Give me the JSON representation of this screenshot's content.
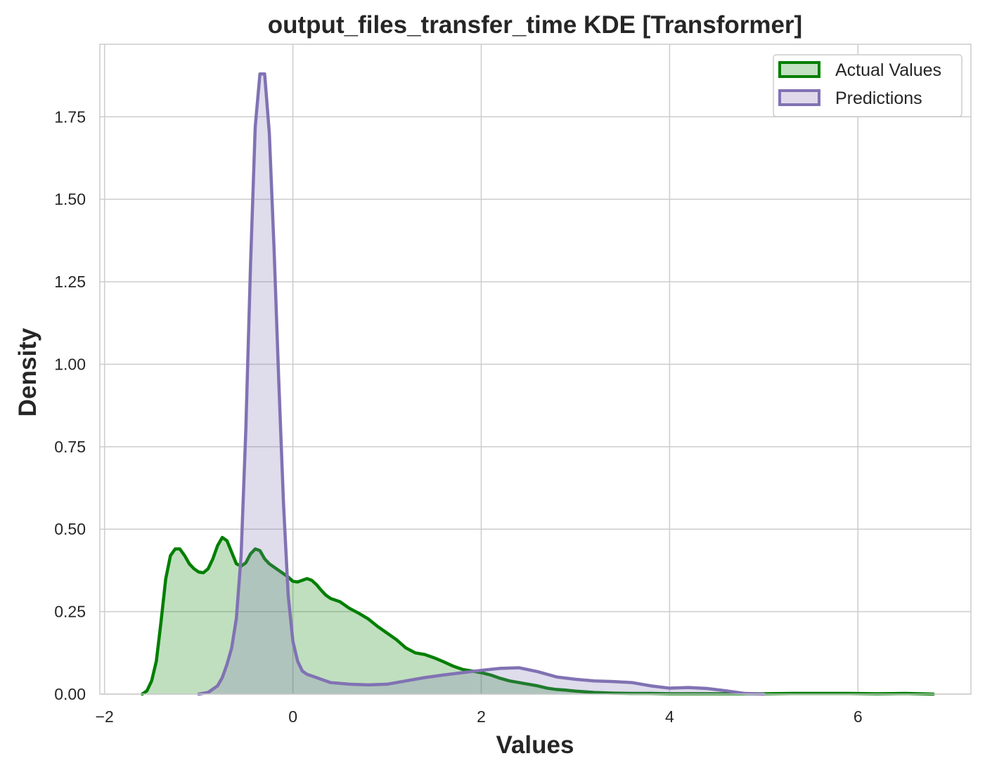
{
  "chart_data": {
    "type": "area",
    "title": "output_files_transfer_time KDE [Transformer]",
    "xlabel": "Values",
    "ylabel": "Density",
    "xlim": [
      -2.05,
      7.2
    ],
    "ylim": [
      0,
      1.97
    ],
    "x_ticks": [
      -2,
      0,
      2,
      4,
      6
    ],
    "x_tick_labels": [
      "−2",
      "0",
      "2",
      "4",
      "6"
    ],
    "y_ticks": [
      0,
      0.25,
      0.5,
      0.75,
      1.0,
      1.25,
      1.5,
      1.75
    ],
    "y_tick_labels": [
      "0.00",
      "0.25",
      "0.50",
      "0.75",
      "1.00",
      "1.25",
      "1.50",
      "1.75"
    ],
    "grid": true,
    "legend_position": "top-right",
    "series": [
      {
        "name": "Actual Values",
        "line_color": "#007f00",
        "fill_color": "#c2e0c2",
        "x": [
          -1.6,
          -1.55,
          -1.5,
          -1.45,
          -1.4,
          -1.35,
          -1.3,
          -1.25,
          -1.2,
          -1.15,
          -1.1,
          -1.05,
          -1.0,
          -0.95,
          -0.9,
          -0.85,
          -0.8,
          -0.75,
          -0.7,
          -0.65,
          -0.6,
          -0.55,
          -0.5,
          -0.45,
          -0.4,
          -0.35,
          -0.3,
          -0.25,
          -0.2,
          -0.15,
          -0.1,
          -0.05,
          0.0,
          0.05,
          0.1,
          0.15,
          0.2,
          0.25,
          0.3,
          0.35,
          0.4,
          0.5,
          0.6,
          0.7,
          0.8,
          0.9,
          1.0,
          1.1,
          1.2,
          1.3,
          1.4,
          1.5,
          1.6,
          1.7,
          1.8,
          1.9,
          2.0,
          2.1,
          2.2,
          2.3,
          2.4,
          2.5,
          2.6,
          2.7,
          2.8,
          2.9,
          3.0,
          3.2,
          3.4,
          3.6,
          3.8,
          4.0,
          4.3,
          4.6,
          5.0,
          5.3,
          5.6,
          5.9,
          6.2,
          6.5,
          6.8
        ],
        "y": [
          0.0,
          0.01,
          0.04,
          0.1,
          0.22,
          0.35,
          0.42,
          0.44,
          0.44,
          0.42,
          0.395,
          0.38,
          0.37,
          0.368,
          0.38,
          0.41,
          0.45,
          0.475,
          0.465,
          0.43,
          0.395,
          0.388,
          0.398,
          0.425,
          0.44,
          0.435,
          0.41,
          0.395,
          0.385,
          0.375,
          0.365,
          0.355,
          0.342,
          0.34,
          0.345,
          0.35,
          0.345,
          0.332,
          0.315,
          0.3,
          0.29,
          0.28,
          0.26,
          0.245,
          0.228,
          0.205,
          0.185,
          0.165,
          0.14,
          0.125,
          0.12,
          0.11,
          0.098,
          0.085,
          0.075,
          0.07,
          0.065,
          0.058,
          0.048,
          0.04,
          0.035,
          0.03,
          0.025,
          0.018,
          0.014,
          0.012,
          0.009,
          0.005,
          0.003,
          0.002,
          0.002,
          0.001,
          0.001,
          0.001,
          0.001,
          0.002,
          0.002,
          0.002,
          0.001,
          0.002,
          0.0
        ]
      },
      {
        "name": "Predictions",
        "line_color": "#8172b3",
        "fill_color": "#dfd9ea",
        "x": [
          -1.0,
          -0.9,
          -0.8,
          -0.75,
          -0.7,
          -0.65,
          -0.6,
          -0.55,
          -0.5,
          -0.45,
          -0.4,
          -0.35,
          -0.3,
          -0.25,
          -0.2,
          -0.15,
          -0.1,
          -0.05,
          0.0,
          0.05,
          0.1,
          0.15,
          0.2,
          0.3,
          0.4,
          0.6,
          0.8,
          1.0,
          1.2,
          1.4,
          1.6,
          1.8,
          2.0,
          2.2,
          2.4,
          2.6,
          2.8,
          3.0,
          3.2,
          3.4,
          3.6,
          3.8,
          4.0,
          4.2,
          4.4,
          4.6,
          4.8,
          5.0
        ],
        "y": [
          0.0,
          0.005,
          0.025,
          0.05,
          0.09,
          0.14,
          0.23,
          0.42,
          0.8,
          1.3,
          1.72,
          1.88,
          1.88,
          1.7,
          1.35,
          0.95,
          0.58,
          0.3,
          0.16,
          0.1,
          0.07,
          0.06,
          0.055,
          0.045,
          0.035,
          0.03,
          0.028,
          0.03,
          0.04,
          0.05,
          0.058,
          0.065,
          0.072,
          0.078,
          0.08,
          0.068,
          0.052,
          0.045,
          0.04,
          0.038,
          0.035,
          0.025,
          0.018,
          0.02,
          0.017,
          0.01,
          0.002,
          0.0
        ]
      }
    ]
  }
}
